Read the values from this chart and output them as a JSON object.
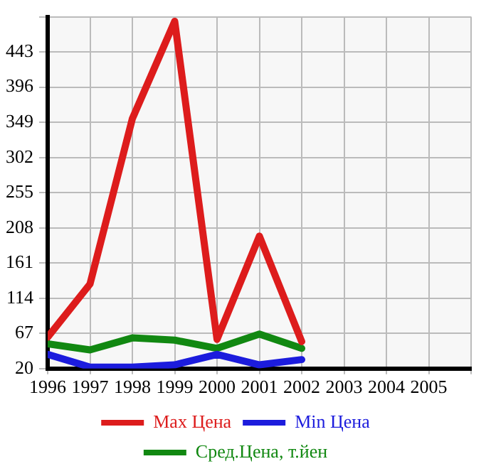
{
  "chart_data": {
    "type": "line",
    "x": [
      1996,
      1997,
      1998,
      1999,
      2000,
      2001,
      2002
    ],
    "series": [
      {
        "name": "Max Цена",
        "color": "#dd1c1c",
        "values": [
          62,
          133,
          354,
          484,
          59,
          197,
          56
        ]
      },
      {
        "name": "Min Цена",
        "color": "#1c1cdd",
        "values": [
          39,
          22,
          22,
          25,
          39,
          25,
          32
        ]
      },
      {
        "name": "Сред.Цена, т.йен",
        "color": "#118811",
        "values": [
          53,
          45,
          61,
          58,
          47,
          66,
          47
        ]
      }
    ],
    "xlim": [
      1996,
      2006
    ],
    "xticks": [
      1996,
      1997,
      1998,
      1999,
      2000,
      2001,
      2002,
      2003,
      2004,
      2005,
      {
        "value": 2006,
        "label": null
      }
    ],
    "ylim": [
      20,
      490
    ],
    "yticks": [
      20,
      67,
      114,
      161,
      208,
      255,
      302,
      349,
      396,
      443,
      {
        "value": 490,
        "label": null
      }
    ],
    "grid": true,
    "legend": "bottom",
    "marker": "none",
    "line_style": "solid"
  }
}
